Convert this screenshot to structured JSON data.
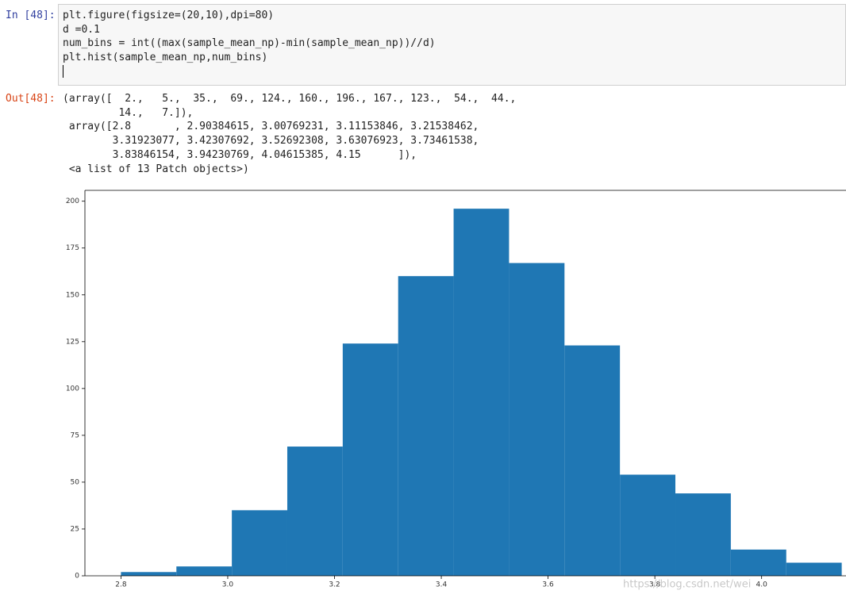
{
  "input": {
    "prompt": "In [48]:",
    "code": [
      "plt.figure(figsize=(20,10),dpi=80)",
      "d =0.1",
      "num_bins = int((max(sample_mean_np)-min(sample_mean_np))//d)",
      "plt.hist(sample_mean_np,num_bins)"
    ]
  },
  "output": {
    "prompt": "Out[48]:",
    "lines": [
      "(array([  2.,   5.,  35.,  69., 124., 160., 196., 167., 123.,  54.,  44.,",
      "         14.,   7.]),",
      " array([2.8       , 2.90384615, 3.00769231, 3.11153846, 3.21538462,",
      "        3.31923077, 3.42307692, 3.52692308, 3.63076923, 3.73461538,",
      "        3.83846154, 3.94230769, 4.04615385, 4.15      ]),",
      " <a list of 13 Patch objects>)"
    ]
  },
  "chart_data": {
    "type": "histogram",
    "bins": [
      2.8,
      2.90384615,
      3.00769231,
      3.11153846,
      3.21538462,
      3.31923077,
      3.42307692,
      3.52692308,
      3.63076923,
      3.73461538,
      3.83846154,
      3.94230769,
      4.04615385,
      4.15
    ],
    "values": [
      2,
      5,
      35,
      69,
      124,
      160,
      196,
      167,
      123,
      54,
      44,
      14,
      7
    ],
    "color": "#1f77b4",
    "xlim": [
      2.7325,
      4.2175
    ],
    "xticks": [
      2.8,
      {
        "value": 3,
        "label": "3.0"
      },
      3.2,
      3.4,
      3.6,
      3.8,
      {
        "value": 4,
        "label": "4.0"
      }
    ],
    "ylim": [
      0,
      205.8
    ],
    "yticks": [
      0,
      25,
      50,
      75,
      100,
      125,
      150,
      175,
      200
    ]
  },
  "watermark": "https://blog.csdn.net/wei"
}
